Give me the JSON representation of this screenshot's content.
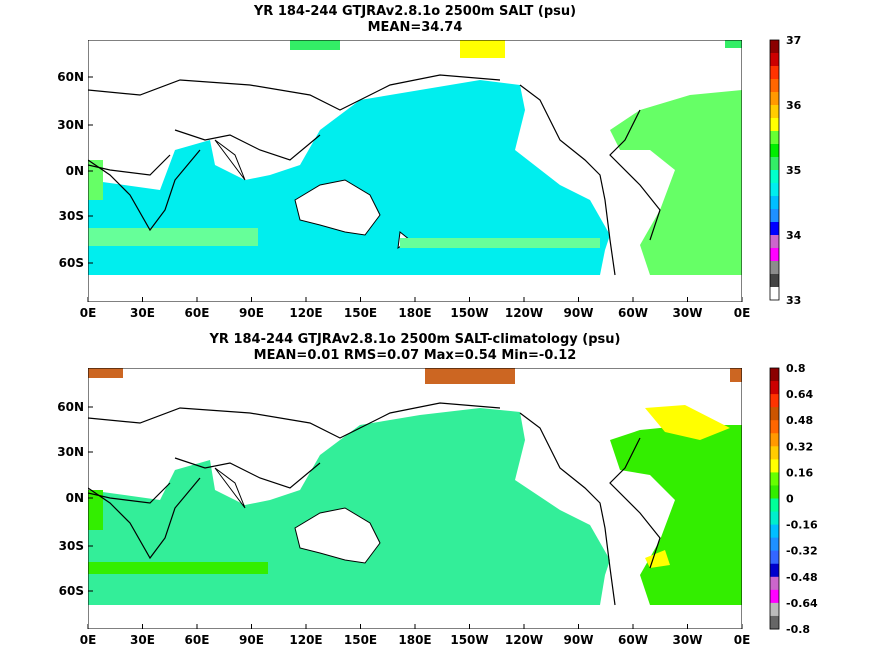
{
  "chart_data": [
    {
      "type": "heatmap",
      "title": "YR 184-244 GTJRAv2.8.1o 2500m SALT (psu)",
      "subtitle": "MEAN=34.74",
      "x_ticks": [
        "0E",
        "30E",
        "60E",
        "90E",
        "120E",
        "150E",
        "180E",
        "150W",
        "120W",
        "90W",
        "60W",
        "30W",
        "0E"
      ],
      "y_ticks": [
        "60N",
        "30N",
        "0N",
        "30S",
        "60S"
      ],
      "colorbar": {
        "range": [
          33,
          37
        ],
        "labels": [
          "37",
          "36",
          "35",
          "34",
          "33"
        ],
        "colors": [
          "#ffffff",
          "#444444",
          "#8c8c8c",
          "#ff00ff",
          "#cc66cc",
          "#0000ff",
          "#1e90ff",
          "#00bfff",
          "#00eeee",
          "#00ffcc",
          "#33ee66",
          "#00ee00",
          "#66ff33",
          "#ffff00",
          "#ffcc00",
          "#ff9900",
          "#ff6600",
          "#ff3300",
          "#cc0000",
          "#8b0000"
        ]
      },
      "regions": {
        "land": "#ffffff",
        "pacific_indian": "#00eeee",
        "atlantic": "#66ff66",
        "southern_band": "#66ff99",
        "arctic_patch": "#ffff00"
      }
    },
    {
      "type": "heatmap",
      "title": "YR 184-244 GTJRAv2.8.1o 2500m SALT-climatology (psu)",
      "subtitle": "MEAN=0.01   RMS=0.07   Max=0.54   Min=-0.12",
      "x_ticks": [
        "0E",
        "30E",
        "60E",
        "90E",
        "120E",
        "150E",
        "180E",
        "150W",
        "120W",
        "90W",
        "60W",
        "30W",
        "0E"
      ],
      "y_ticks": [
        "60N",
        "30N",
        "0N",
        "30S",
        "60S"
      ],
      "colorbar": {
        "range": [
          -0.8,
          0.8
        ],
        "labels": [
          "0.8",
          "0.64",
          "0.48",
          "0.32",
          "0.16",
          "0",
          "-0.16",
          "-0.32",
          "-0.48",
          "-0.64",
          "-0.8"
        ],
        "colors": [
          "#666666",
          "#bbbbbb",
          "#ff00ff",
          "#cc66cc",
          "#0000cc",
          "#3366ff",
          "#1e90ff",
          "#00bfff",
          "#00eecc",
          "#00ff99",
          "#33ee00",
          "#66ff00",
          "#ffff00",
          "#ffcc00",
          "#ff9900",
          "#ff6600",
          "#cc5500",
          "#ff3300",
          "#cc0000",
          "#8b0000"
        ]
      },
      "regions": {
        "land": "#ffffff",
        "ocean": "#33ee99",
        "atlantic": "#33ee00",
        "labrador": "#ffff00",
        "arctic": "#cc6622"
      }
    }
  ]
}
